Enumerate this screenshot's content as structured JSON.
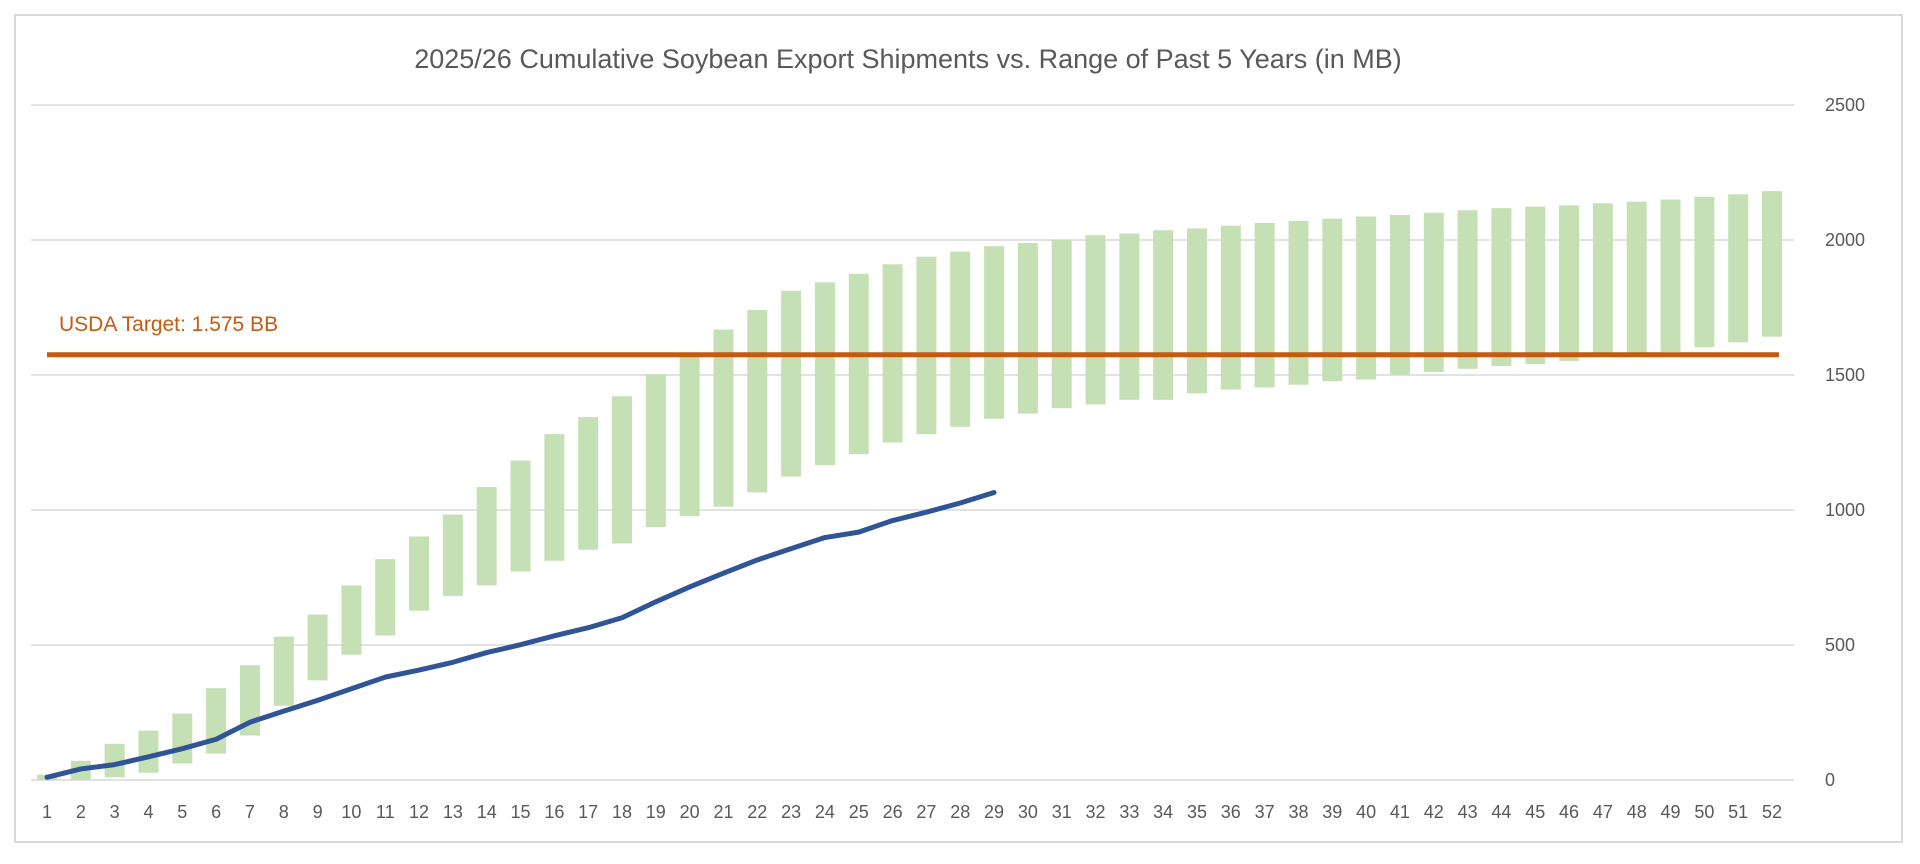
{
  "chart_data": {
    "type": "bar",
    "title": "2025/26 Cumulative Soybean Export Shipments vs. Range of Past 5 Years (in MB)",
    "xlabel": "",
    "ylabel": "",
    "ylim": [
      0,
      2500
    ],
    "yticks": [
      0,
      500,
      1000,
      1500,
      2000,
      2500
    ],
    "y_axis_position": "right",
    "grid": true,
    "categories": [
      1,
      2,
      3,
      4,
      5,
      6,
      7,
      8,
      9,
      10,
      11,
      12,
      13,
      14,
      15,
      16,
      17,
      18,
      19,
      20,
      21,
      22,
      23,
      24,
      25,
      26,
      27,
      28,
      29,
      30,
      31,
      32,
      33,
      34,
      35,
      36,
      37,
      38,
      39,
      40,
      41,
      42,
      43,
      44,
      45,
      46,
      47,
      48,
      49,
      50,
      51,
      52
    ],
    "range_series": {
      "name": "Range of Past 5 Years",
      "color": "#c5e0b4",
      "low": [
        0,
        0,
        10,
        27,
        61,
        98,
        165,
        275,
        369,
        464,
        535,
        627,
        682,
        721,
        772,
        812,
        853,
        876,
        937,
        977,
        1012,
        1065,
        1124,
        1166,
        1207,
        1250,
        1281,
        1308,
        1338,
        1357,
        1377,
        1391,
        1408,
        1408,
        1432,
        1446,
        1454,
        1464,
        1477,
        1483,
        1499,
        1511,
        1523,
        1533,
        1541,
        1552,
        1570,
        1572,
        1585,
        1603,
        1621,
        1642
      ],
      "high": [
        20,
        71,
        134,
        183,
        246,
        340,
        425,
        531,
        613,
        721,
        818,
        902,
        983,
        1085,
        1183,
        1281,
        1344,
        1421,
        1503,
        1568,
        1668,
        1741,
        1812,
        1843,
        1875,
        1910,
        1938,
        1957,
        1977,
        1989,
        2002,
        2018,
        2024,
        2036,
        2043,
        2053,
        2063,
        2071,
        2079,
        2087,
        2093,
        2101,
        2110,
        2118,
        2124,
        2128,
        2136,
        2142,
        2150,
        2160,
        2169,
        2181
      ]
    },
    "line_series": {
      "name": "2025/26",
      "color": "#2f5597",
      "values": [
        10,
        41,
        57,
        86,
        116,
        151,
        214,
        255,
        295,
        338,
        381,
        407,
        436,
        472,
        501,
        534,
        564,
        601,
        660,
        715,
        766,
        815,
        857,
        898,
        918,
        961,
        992,
        1026,
        1065
      ]
    },
    "reference_line": {
      "label": "USDA Target: 1.575 BB",
      "value": 1575,
      "color": "#c55a11"
    }
  }
}
